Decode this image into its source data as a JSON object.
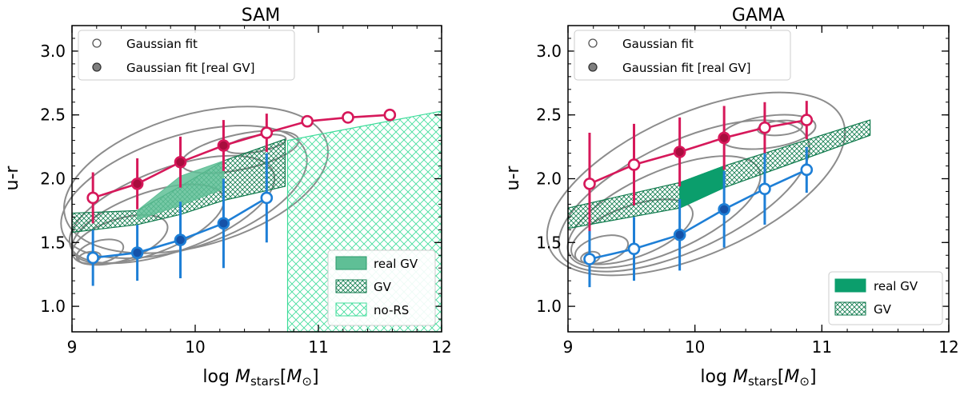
{
  "chart_data": [
    {
      "type": "scatter",
      "title": "SAM",
      "xlabel": "log M_stars[M_⊙]",
      "xlabel_parts": {
        "prefix": "log ",
        "m": "M",
        "sub": "stars",
        "open": "[",
        "msun": "M",
        "sun_sub": "⊙",
        "close": "]"
      },
      "ylabel": "u-r",
      "xlim": [
        9,
        12
      ],
      "ylim": [
        0.8,
        3.2
      ],
      "xticks": [
        "9",
        "10",
        "11",
        "12"
      ],
      "yticks": [
        "1.0",
        "1.5",
        "2.0",
        "2.5",
        "3.0"
      ],
      "xtick_values": [
        9,
        10,
        11,
        12
      ],
      "ytick_values": [
        1.0,
        1.5,
        2.0,
        2.5,
        3.0
      ],
      "legend_top": [
        "Gaussian fit",
        "Gaussian fit [real GV]"
      ],
      "legend_bottom": [
        "real GV",
        "GV",
        "no-RS"
      ],
      "red_series": {
        "name": "red sequence",
        "x": [
          9.17,
          9.53,
          9.88,
          10.23,
          10.58,
          10.91,
          11.24,
          11.58
        ],
        "y": [
          1.85,
          1.96,
          2.13,
          2.26,
          2.36,
          2.45,
          2.48,
          2.5
        ],
        "err": [
          0.2,
          0.2,
          0.2,
          0.2,
          0.15,
          0.0,
          0.0,
          0.0
        ],
        "filled": [
          false,
          true,
          true,
          true,
          false,
          false,
          false,
          false
        ]
      },
      "blue_series": {
        "name": "blue cloud",
        "x": [
          9.17,
          9.53,
          9.88,
          10.23,
          10.58
        ],
        "y": [
          1.38,
          1.42,
          1.52,
          1.65,
          1.85
        ],
        "err": [
          0.22,
          0.22,
          0.3,
          0.35,
          0.35
        ],
        "filled": [
          false,
          true,
          true,
          true,
          false
        ]
      },
      "gv_band": {
        "x": [
          9.0,
          9.53,
          9.88,
          10.23,
          10.73
        ],
        "lower": [
          1.58,
          1.64,
          1.72,
          1.83,
          1.94
        ],
        "upper": [
          1.73,
          1.75,
          1.94,
          2.14,
          2.31
        ]
      },
      "real_gv_band": {
        "x": [
          9.53,
          9.88,
          10.23
        ],
        "lower": [
          1.68,
          1.79,
          1.92
        ],
        "upper": [
          1.75,
          2.02,
          2.14
        ]
      },
      "no_rs_region": {
        "x": [
          10.75,
          12.0
        ],
        "upper": [
          2.3,
          2.53
        ],
        "lower": 0.8
      }
    },
    {
      "type": "scatter",
      "title": "GAMA",
      "xlabel": "log M_stars[M_⊙]",
      "xlabel_parts": {
        "prefix": "log ",
        "m": "M",
        "sub": "stars",
        "open": "[",
        "msun": "M",
        "sun_sub": "⊙",
        "close": "]"
      },
      "ylabel": "u-r",
      "xlim": [
        9,
        12
      ],
      "ylim": [
        0.8,
        3.2
      ],
      "xticks": [
        "9",
        "10",
        "11",
        "12"
      ],
      "yticks": [
        "1.0",
        "1.5",
        "2.0",
        "2.5",
        "3.0"
      ],
      "xtick_values": [
        9,
        10,
        11,
        12
      ],
      "ytick_values": [
        1.0,
        1.5,
        2.0,
        2.5,
        3.0
      ],
      "legend_top": [
        "Gaussian fit",
        "Gaussian fit [real GV]"
      ],
      "legend_bottom": [
        "real GV",
        "GV"
      ],
      "red_series": {
        "name": "red sequence",
        "x": [
          9.17,
          9.52,
          9.88,
          10.23,
          10.55,
          10.88
        ],
        "y": [
          1.96,
          2.11,
          2.21,
          2.32,
          2.4,
          2.46
        ],
        "err": [
          0.4,
          0.32,
          0.27,
          0.25,
          0.2,
          0.15
        ],
        "filled": [
          false,
          false,
          true,
          true,
          false,
          false
        ]
      },
      "blue_series": {
        "name": "blue cloud",
        "x": [
          9.17,
          9.52,
          9.88,
          10.23,
          10.55,
          10.88
        ],
        "y": [
          1.37,
          1.45,
          1.56,
          1.76,
          1.92,
          2.07
        ],
        "err": [
          0.22,
          0.25,
          0.28,
          0.3,
          0.28,
          0.18
        ],
        "filled": [
          false,
          false,
          true,
          true,
          false,
          false
        ]
      },
      "gv_band": {
        "x": [
          9.0,
          9.88,
          10.23,
          11.38
        ],
        "lower": [
          1.61,
          1.77,
          1.93,
          2.34
        ],
        "upper": [
          1.77,
          1.97,
          2.1,
          2.46
        ]
      },
      "real_gv_band": {
        "x": [
          9.88,
          10.23
        ],
        "lower": [
          1.77,
          1.93
        ],
        "upper": [
          1.97,
          2.1
        ]
      }
    }
  ]
}
